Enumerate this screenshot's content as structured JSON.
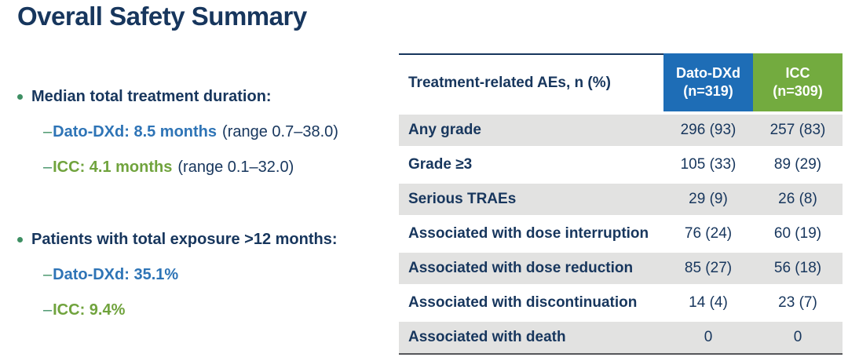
{
  "slide": {
    "title": "Overall Safety Summary"
  },
  "bullets": [
    {
      "label": "Median total treatment duration:",
      "subs": [
        {
          "dash": "–",
          "highlight": "Dato-DXd: 8.5 months",
          "rest": "(range 0.7–38.0)"
        },
        {
          "dash": "–",
          "highlight": "ICC: 4.1 months",
          "rest": "(range 0.1–32.0)"
        }
      ]
    },
    {
      "label": "Patients with total exposure >12 months:",
      "subs": [
        {
          "dash": "–",
          "highlight": "Dato-DXd: 35.1%",
          "rest": ""
        },
        {
          "dash": "–",
          "highlight": "ICC: 9.4%",
          "rest": ""
        }
      ]
    }
  ],
  "table": {
    "header": {
      "row_label": "Treatment-related AEs, n (%)",
      "dato_line1": "Dato-DXd",
      "dato_line2": "(n=319)",
      "icc_line1": "ICC",
      "icc_line2": "(n=309)"
    },
    "rows": [
      {
        "label": "Any grade",
        "dato": "296 (93)",
        "icc": "257 (83)"
      },
      {
        "label": "Grade ≥3",
        "dato": "105 (33)",
        "icc": "89 (29)"
      },
      {
        "label": "Serious TRAEs",
        "dato": "29 (9)",
        "icc": "26 (8)"
      },
      {
        "label": "Associated with dose interruption",
        "dato": "76 (24)",
        "icc": "60 (19)"
      },
      {
        "label": "Associated with dose reduction",
        "dato": "85 (27)",
        "icc": "56 (18)"
      },
      {
        "label": "Associated with discontinuation",
        "dato": "14 (4)",
        "icc": "23 (7)"
      },
      {
        "label": "Associated with death",
        "dato": "0",
        "icc": "0"
      }
    ]
  },
  "colors": {
    "navy_text": "#17365d",
    "blue_accent": "#2e74b6",
    "green_accent": "#70a33d",
    "marker_green": "#3e8f63",
    "header_blue_bg": "#1e6db6",
    "header_green_bg": "#73ab3f",
    "row_stripe_gray": "#e2e2e1"
  }
}
